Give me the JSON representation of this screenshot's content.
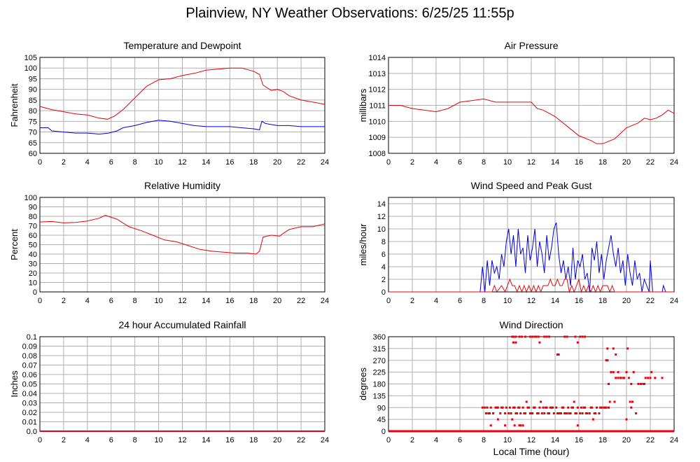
{
  "page": {
    "title": "Plainview, NY Weather Observations: 6/25/25 11:55p"
  },
  "colors": {
    "red": "#e8000b",
    "blue": "#0000dd",
    "grid": "#b0b0b0"
  },
  "chart_data": [
    {
      "id": "temperature",
      "type": "line",
      "title": "Temperature and Dewpoint",
      "ylabel": "Fahrenheit",
      "xlabel": "",
      "xlim": [
        0,
        24
      ],
      "ylim": [
        60,
        105
      ],
      "xticks": [
        0,
        2,
        4,
        6,
        8,
        10,
        12,
        14,
        16,
        18,
        20,
        22,
        24
      ],
      "yticks": [
        60,
        65,
        70,
        75,
        80,
        85,
        90,
        95,
        100,
        105
      ],
      "grid": true,
      "series": [
        {
          "color": "#e8000b",
          "x": [
            0,
            1,
            2,
            3,
            4,
            5,
            5.7,
            6.3,
            7,
            8,
            9,
            10,
            11,
            12,
            13,
            14,
            15,
            16,
            17,
            18,
            18.5,
            18.8,
            19.5,
            20,
            20.5,
            21,
            22,
            23,
            24
          ],
          "y": [
            82,
            80.5,
            79.5,
            78.5,
            78,
            76.5,
            76,
            77.5,
            80.5,
            86,
            91.5,
            94.5,
            95,
            96.5,
            97.5,
            99,
            99.5,
            100,
            100,
            98.5,
            97,
            92,
            89.5,
            90,
            89,
            87,
            85,
            84,
            83
          ]
        },
        {
          "color": "#0000dd",
          "x": [
            0,
            0.7,
            1,
            2,
            3,
            4,
            5,
            5.8,
            6.5,
            7,
            8,
            9,
            10,
            11,
            12,
            13,
            14,
            15,
            16,
            17,
            18,
            18.5,
            18.7,
            19,
            20,
            21,
            22,
            23,
            24
          ],
          "y": [
            72,
            72,
            70.5,
            70,
            69.5,
            69.5,
            69,
            69.5,
            70.5,
            72,
            73,
            74.5,
            75.5,
            75,
            74,
            73,
            72.5,
            72.5,
            72.5,
            72,
            71.5,
            71,
            75,
            74,
            73,
            73,
            72.5,
            72.5,
            72.5
          ]
        }
      ]
    },
    {
      "id": "pressure",
      "type": "line",
      "title": "Air Pressure",
      "ylabel": "millibars",
      "xlabel": "",
      "xlim": [
        0,
        24
      ],
      "ylim": [
        1008,
        1014
      ],
      "xticks": [
        0,
        2,
        4,
        6,
        8,
        10,
        12,
        14,
        16,
        18,
        20,
        22,
        24
      ],
      "yticks": [
        1008,
        1009,
        1010,
        1011,
        1012,
        1013,
        1014
      ],
      "grid": true,
      "series": [
        {
          "color": "#e8000b",
          "x": [
            0,
            1,
            2,
            3,
            4,
            5,
            6,
            7,
            8,
            9,
            10,
            11,
            12,
            12.5,
            13,
            14,
            15,
            16,
            17,
            17.5,
            18,
            19,
            20,
            21,
            21.5,
            22,
            22.5,
            23,
            23.5,
            24
          ],
          "y": [
            1011,
            1011,
            1010.8,
            1010.7,
            1010.6,
            1010.8,
            1011.2,
            1011.3,
            1011.4,
            1011.2,
            1011.2,
            1011.2,
            1011.2,
            1010.8,
            1010.7,
            1010.3,
            1009.7,
            1009.1,
            1008.8,
            1008.6,
            1008.6,
            1008.9,
            1009.6,
            1009.9,
            1010.2,
            1010.1,
            1010.2,
            1010.4,
            1010.7,
            1010.5
          ]
        }
      ]
    },
    {
      "id": "humidity",
      "type": "line",
      "title": "Relative Humidity",
      "ylabel": "Percent",
      "xlabel": "",
      "xlim": [
        0,
        24
      ],
      "ylim": [
        0,
        100
      ],
      "xticks": [
        0,
        2,
        4,
        6,
        8,
        10,
        12,
        14,
        16,
        18,
        20,
        22,
        24
      ],
      "yticks": [
        0,
        10,
        20,
        30,
        40,
        50,
        60,
        70,
        80,
        90,
        100
      ],
      "grid": true,
      "series": [
        {
          "color": "#e8000b",
          "x": [
            0,
            1,
            2,
            3,
            4,
            5,
            5.5,
            6.5,
            7.5,
            8.5,
            9.5,
            10.5,
            11.5,
            12.5,
            13.5,
            14.5,
            15.5,
            16.5,
            17.5,
            18.2,
            18.5,
            18.8,
            19.5,
            20.2,
            20.5,
            21,
            22,
            23,
            24
          ],
          "y": [
            74,
            74.5,
            73,
            73.5,
            75,
            78,
            81,
            77,
            69,
            65,
            60,
            55,
            53,
            49,
            45,
            43,
            42,
            41,
            41,
            40,
            43,
            58,
            60,
            59,
            62,
            66,
            69,
            69,
            72
          ]
        }
      ]
    },
    {
      "id": "wind_speed",
      "type": "line",
      "title": "Wind Speed and Peak Gust",
      "ylabel": "miles/hour",
      "xlabel": "",
      "xlim": [
        0,
        24
      ],
      "ylim": [
        0,
        15
      ],
      "xticks": [
        0,
        2,
        4,
        6,
        8,
        10,
        12,
        14,
        16,
        18,
        20,
        22,
        24
      ],
      "yticks": [
        0,
        2,
        4,
        6,
        8,
        10,
        12,
        14
      ],
      "grid": true,
      "series": [
        {
          "color": "#0000dd",
          "x": [
            0,
            7.7,
            7.9,
            8.1,
            8.3,
            8.5,
            8.7,
            8.9,
            9.1,
            9.3,
            9.5,
            9.7,
            9.9,
            10.1,
            10.3,
            10.5,
            10.7,
            10.9,
            11.1,
            11.3,
            11.5,
            11.7,
            11.9,
            12.1,
            12.3,
            12.5,
            12.7,
            12.9,
            13.1,
            13.3,
            13.5,
            13.7,
            13.9,
            14.1,
            14.3,
            14.5,
            14.7,
            14.9,
            15.1,
            15.3,
            15.5,
            15.7,
            15.9,
            16.1,
            16.3,
            16.5,
            16.7,
            16.9,
            17.1,
            17.3,
            17.5,
            17.7,
            17.9,
            18.1,
            18.3,
            18.5,
            18.7,
            18.9,
            19.1,
            19.3,
            19.5,
            19.7,
            19.9,
            20.1,
            20.3,
            20.5,
            20.7,
            20.9,
            21.1,
            21.3,
            21.5,
            21.7,
            21.9,
            22.0,
            22.2,
            22.5,
            23.0,
            23.1,
            23.3,
            24
          ],
          "y": [
            0,
            0,
            4,
            0,
            5,
            1,
            5,
            3,
            4,
            2,
            6,
            4,
            8,
            10,
            6,
            9,
            4,
            10,
            6,
            7,
            3,
            9,
            5,
            7,
            10,
            4,
            8,
            6,
            3,
            9,
            5,
            7,
            10,
            11,
            6,
            3,
            5,
            2,
            4,
            1,
            7,
            2,
            5,
            4,
            6,
            2,
            3,
            0,
            7,
            5,
            8,
            3,
            6,
            2,
            5,
            7,
            9,
            6,
            4,
            7,
            3,
            5,
            1,
            6,
            3,
            1,
            5,
            2,
            3,
            0,
            2,
            1,
            0,
            5,
            0,
            0,
            0,
            1,
            0,
            0
          ]
        },
        {
          "color": "#e8000b",
          "x": [
            0,
            8.7,
            8.9,
            9.1,
            9.5,
            9.8,
            10.0,
            10.2,
            10.4,
            10.6,
            10.8,
            11.0,
            11.2,
            11.4,
            11.6,
            11.8,
            12.0,
            12.2,
            12.4,
            12.6,
            12.8,
            13.0,
            13.2,
            13.4,
            13.6,
            13.8,
            14.0,
            14.2,
            14.4,
            14.6,
            14.8,
            15.0,
            15.2,
            15.4,
            15.6,
            15.8,
            16.0,
            16.2,
            16.4,
            16.6,
            16.8,
            17.0,
            17.2,
            17.4,
            17.6,
            17.8,
            18.0,
            18.2,
            18.4,
            18.6,
            18.8,
            19.0,
            24
          ],
          "y": [
            0,
            0,
            1,
            0,
            1,
            0,
            1,
            2,
            1,
            1,
            0,
            1,
            0,
            1,
            0,
            1,
            0,
            1,
            0,
            1,
            0,
            1,
            1,
            1,
            2,
            1,
            1,
            2,
            1,
            1,
            2,
            2,
            0,
            1,
            0,
            1,
            2,
            0,
            1,
            0,
            1,
            0,
            1,
            0,
            1,
            0,
            1,
            1,
            1,
            0,
            1,
            0,
            0
          ]
        }
      ]
    },
    {
      "id": "rainfall",
      "type": "line",
      "title": "24 hour Accumulated Rainfall",
      "ylabel": "Inches",
      "xlabel": "",
      "xlim": [
        0,
        24
      ],
      "ylim": [
        0,
        0.1
      ],
      "xticks": [
        0,
        2,
        4,
        6,
        8,
        10,
        12,
        14,
        16,
        18,
        20,
        22,
        24
      ],
      "yticks": [
        0.0,
        0.01,
        0.02,
        0.03,
        0.04,
        0.05,
        0.06,
        0.07,
        0.08,
        0.09,
        0.1
      ],
      "ytick_labels": [
        "0.0",
        "0.01",
        "0.02",
        "0.03",
        "0.04",
        "0.05",
        "0.06",
        "0.07",
        "0.08",
        "0.09",
        "0.1"
      ],
      "grid": true,
      "series": [
        {
          "color": "#e8000b",
          "x": [
            0,
            24
          ],
          "y": [
            0,
            0
          ]
        }
      ]
    },
    {
      "id": "wind_direction",
      "type": "scatter",
      "title": "Wind Direction",
      "ylabel": "degrees",
      "xlabel": "Local Time (hour)",
      "xlim": [
        0,
        24
      ],
      "ylim": [
        0,
        360
      ],
      "xticks": [
        0,
        2,
        4,
        6,
        8,
        10,
        12,
        14,
        16,
        18,
        20,
        22,
        24
      ],
      "yticks": [
        0,
        45,
        90,
        135,
        180,
        225,
        270,
        315,
        360
      ],
      "grid": true,
      "baseline_zero": true,
      "series": [
        {
          "color": "#e8000b",
          "x": [
            7.9,
            8.1,
            8.3,
            8.5,
            8.6,
            8.8,
            9.0,
            9.2,
            9.4,
            9.6,
            9.8,
            9.9,
            10.1,
            10.3,
            10.5,
            10.7,
            10.9,
            11.1,
            11.3,
            11.5,
            11.7,
            11.9,
            12.1,
            12.3,
            12.5,
            12.7,
            12.9,
            13.1,
            13.3,
            13.5,
            13.7,
            13.9,
            14.1,
            14.3,
            14.5,
            14.7,
            14.9,
            15.1,
            15.3,
            15.5,
            15.7,
            15.9,
            16.1,
            16.3,
            16.5,
            16.7,
            16.9,
            17.1,
            17.3,
            17.5,
            17.7,
            17.9,
            18.1,
            18.2,
            18.3,
            18.5,
            18.7,
            18.9,
            19.1,
            19.3,
            19.5,
            19.8,
            20.0,
            20.2,
            20.4,
            20.6,
            21.0,
            21.2,
            21.8,
            22.0,
            23.0,
            8.2,
            8.4,
            8.8,
            9.1,
            9.5,
            10.2,
            10.6,
            10.8,
            11.0,
            11.4,
            11.8,
            12.0,
            12.2,
            12.6,
            13.0,
            13.4,
            13.8,
            14.2,
            14.6,
            15.0,
            15.4,
            15.8,
            16.2,
            16.6,
            17.0,
            17.4,
            17.8,
            18.4,
            8.6,
            9.2,
            9.8,
            10.4,
            10.6,
            11.1,
            11.6,
            12.8,
            13.2,
            13.6,
            14.4,
            14.8,
            15.2,
            15.6,
            16.4,
            17.2,
            18.6,
            19.0,
            10.4,
            10.5,
            10.7,
            11.0,
            11.2,
            11.5,
            11.9,
            12.1,
            12.3,
            12.4,
            12.6,
            12.7,
            13.1,
            13.3,
            13.5,
            14.2,
            14.3,
            14.8,
            15.0,
            15.7,
            15.9,
            16.1,
            16.3,
            16.5,
            18.9,
            19.1,
            19.3,
            19.5,
            19.7,
            20.1,
            20.4,
            20.8,
            21.4,
            21.5,
            21.6,
            22.1,
            22.4,
            18.5,
            10.5,
            10.7,
            11.0,
            11.3,
            15.9,
            18.3,
            18.4,
            20.0,
            20.3,
            20.5
          ],
          "y": [
            90,
            90,
            90,
            68,
            90,
            68,
            90,
            90,
            68,
            90,
            68,
            90,
            68,
            68,
            90,
            68,
            90,
            68,
            90,
            68,
            90,
            68,
            68,
            90,
            68,
            90,
            68,
            68,
            90,
            68,
            90,
            68,
            90,
            68,
            68,
            90,
            68,
            90,
            68,
            90,
            68,
            90,
            68,
            68,
            90,
            68,
            68,
            90,
            68,
            90,
            68,
            90,
            90,
            90,
            90,
            90,
            225,
            225,
            203,
            203,
            203,
            203,
            225,
            203,
            180,
            225,
            180,
            180,
            203,
            203,
            203,
            68,
            68,
            68,
            90,
            90,
            90,
            90,
            68,
            90,
            68,
            90,
            68,
            90,
            68,
            90,
            68,
            90,
            68,
            90,
            68,
            90,
            68,
            90,
            68,
            90,
            68,
            90,
            270,
            22,
            45,
            22,
            45,
            22,
            22,
            112,
            112,
            90,
            90,
            68,
            68,
            68,
            112,
            90,
            45,
            112,
            112,
            360,
            360,
            360,
            360,
            360,
            360,
            360,
            360,
            360,
            360,
            360,
            338,
            360,
            360,
            360,
            292,
            292,
            360,
            360,
            360,
            338,
            360,
            360,
            360,
            315,
            292,
            225,
            203,
            203,
            315,
            90,
            68,
            180,
            180,
            203,
            225,
            203,
            180,
            338,
            338,
            22,
            22,
            22,
            270,
            315,
            45,
            112,
            112
          ]
        }
      ]
    }
  ]
}
